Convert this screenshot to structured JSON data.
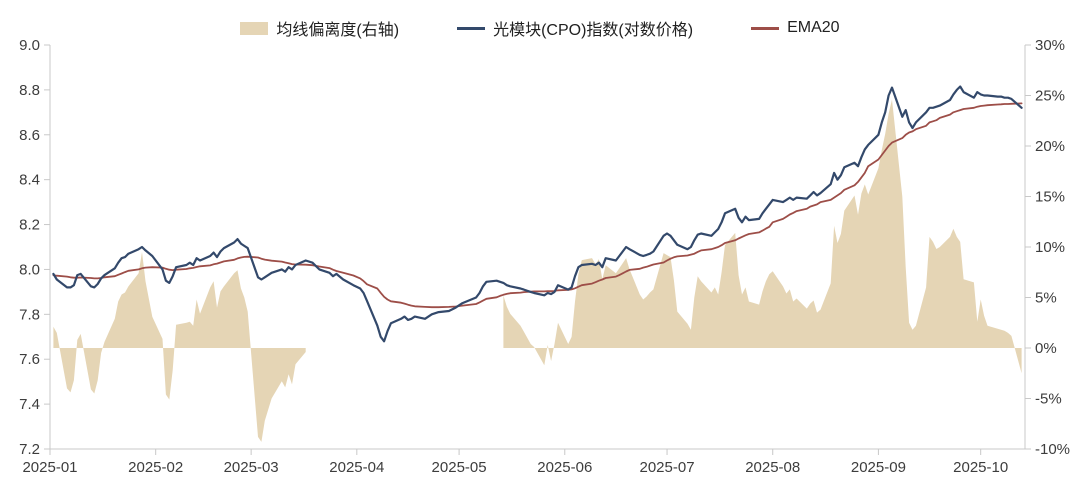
{
  "chart_data": {
    "type": "area+line",
    "title": "",
    "legend_position": "top-center",
    "grid": false,
    "colors": {
      "deviation_area": "#e5d5b5",
      "index_line": "#33496b",
      "ema_line": "#9d4e48",
      "axis_line": "#c8c8c8",
      "tick_label": "#3d3d3d",
      "background": "#ffffff"
    },
    "axes": {
      "left": {
        "min": 7.2,
        "max": 9.0,
        "ticks": [
          "9.0",
          "8.8",
          "8.6",
          "8.4",
          "8.2",
          "8.0",
          "7.8",
          "7.6",
          "7.4",
          "7.2"
        ]
      },
      "right": {
        "min": -10,
        "max": 30,
        "ticks": [
          "30%",
          "25%",
          "20%",
          "15%",
          "10%",
          "5%",
          "0%",
          "-5%",
          "-10%"
        ]
      },
      "x": {
        "domain": [
          "2025-01-01",
          "2025-10-14"
        ],
        "ticks": [
          {
            "label": "2025-01",
            "date": "2025-01-01"
          },
          {
            "label": "2025-02",
            "date": "2025-02-01"
          },
          {
            "label": "2025-03",
            "date": "2025-03-01"
          },
          {
            "label": "2025-04",
            "date": "2025-04-01"
          },
          {
            "label": "2025-05",
            "date": "2025-05-01"
          },
          {
            "label": "2025-06",
            "date": "2025-06-01"
          },
          {
            "label": "2025-07",
            "date": "2025-07-01"
          },
          {
            "label": "2025-08",
            "date": "2025-08-01"
          },
          {
            "label": "2025-09",
            "date": "2025-09-01"
          },
          {
            "label": "2025-10",
            "date": "2025-10-01"
          }
        ]
      }
    },
    "series": [
      {
        "name": "均线偏离度(右轴)",
        "type": "area",
        "axis": "right",
        "color": "#e5d5b5"
      },
      {
        "name": "光模块(CPO)指数(对数价格)",
        "type": "line",
        "axis": "left",
        "color": "#33496b",
        "width": 2.2
      },
      {
        "name": "EMA20",
        "type": "line",
        "axis": "left",
        "color": "#9d4e48",
        "width": 1.8
      }
    ],
    "points_format": [
      "date",
      "index_log_price",
      "ema20",
      "deviation_pct"
    ],
    "points": [
      [
        "2025-01-02",
        7.98,
        7.975,
        2.1
      ],
      [
        "2025-01-03",
        7.955,
        7.972,
        1.5
      ],
      [
        "2025-01-06",
        7.92,
        7.968,
        -4.0
      ],
      [
        "2025-01-07",
        7.92,
        7.965,
        -4.4
      ],
      [
        "2025-01-08",
        7.93,
        7.963,
        -3.2
      ],
      [
        "2025-01-09",
        7.975,
        7.963,
        0.8
      ],
      [
        "2025-01-10",
        7.98,
        7.964,
        1.4
      ],
      [
        "2025-01-13",
        7.925,
        7.962,
        -4.1
      ],
      [
        "2025-01-14",
        7.92,
        7.96,
        -4.5
      ],
      [
        "2025-01-15",
        7.935,
        7.96,
        -3.2
      ],
      [
        "2025-01-16",
        7.96,
        7.962,
        -0.5
      ],
      [
        "2025-01-17",
        7.975,
        7.965,
        0.6
      ],
      [
        "2025-01-20",
        8.005,
        7.97,
        2.9
      ],
      [
        "2025-01-21",
        8.03,
        7.976,
        4.6
      ],
      [
        "2025-01-22",
        8.05,
        7.982,
        5.3
      ],
      [
        "2025-01-23",
        8.055,
        7.988,
        5.5
      ],
      [
        "2025-01-24",
        8.07,
        7.994,
        6.1
      ],
      [
        "2025-01-27",
        8.09,
        8.0,
        7.4
      ],
      [
        "2025-01-28",
        8.1,
        8.005,
        9.5
      ],
      [
        "2025-01-29",
        8.085,
        8.008,
        6.6
      ],
      [
        "2025-01-31",
        8.06,
        8.01,
        3.1
      ],
      [
        "2025-02-03",
        8.0,
        8.008,
        0.9
      ],
      [
        "2025-02-04",
        7.95,
        8.003,
        -4.6
      ],
      [
        "2025-02-05",
        7.94,
        7.999,
        -5.1
      ],
      [
        "2025-02-06",
        7.97,
        7.997,
        -2.2
      ],
      [
        "2025-02-07",
        8.01,
        7.999,
        2.3
      ],
      [
        "2025-02-10",
        8.02,
        8.002,
        2.5
      ],
      [
        "2025-02-11",
        8.03,
        8.005,
        2.6
      ],
      [
        "2025-02-12",
        8.02,
        8.007,
        2.2
      ],
      [
        "2025-02-13",
        8.05,
        8.011,
        4.8
      ],
      [
        "2025-02-14",
        8.04,
        8.014,
        3.4
      ],
      [
        "2025-02-17",
        8.06,
        8.018,
        6.0
      ],
      [
        "2025-02-18",
        8.075,
        8.023,
        6.6
      ],
      [
        "2025-02-19",
        8.055,
        8.026,
        4.0
      ],
      [
        "2025-02-20",
        8.08,
        8.031,
        5.6
      ],
      [
        "2025-02-21",
        8.095,
        8.036,
        6.1
      ],
      [
        "2025-02-24",
        8.12,
        8.043,
        7.4
      ],
      [
        "2025-02-25",
        8.135,
        8.049,
        7.7
      ],
      [
        "2025-02-26",
        8.115,
        8.053,
        5.9
      ],
      [
        "2025-02-27",
        8.105,
        8.056,
        5.0
      ],
      [
        "2025-02-28",
        8.095,
        8.057,
        3.6
      ],
      [
        "2025-03-03",
        7.965,
        8.053,
        -8.8
      ],
      [
        "2025-03-04",
        7.955,
        8.048,
        -9.3
      ],
      [
        "2025-03-05",
        7.965,
        8.044,
        -7.2
      ],
      [
        "2025-03-07",
        7.985,
        8.039,
        -5.0
      ],
      [
        "2025-03-10",
        8.0,
        8.035,
        -3.3
      ],
      [
        "2025-03-11",
        7.99,
        8.031,
        -3.9
      ],
      [
        "2025-03-12",
        8.01,
        8.028,
        -2.6
      ],
      [
        "2025-03-13",
        8.0,
        8.024,
        -3.6
      ],
      [
        "2025-03-14",
        8.02,
        8.022,
        -1.6
      ],
      [
        "2025-03-17",
        8.04,
        8.021,
        -0.4
      ],
      [
        "2025-03-19",
        8.03,
        8.019,
        null
      ],
      [
        "2025-03-21",
        8.0,
        8.013,
        null
      ],
      [
        "2025-03-24",
        7.985,
        8.006,
        null
      ],
      [
        "2025-03-25",
        7.97,
        7.999,
        null
      ],
      [
        "2025-03-26",
        7.98,
        7.993,
        null
      ],
      [
        "2025-03-28",
        7.955,
        7.985,
        null
      ],
      [
        "2025-03-31",
        7.93,
        7.973,
        null
      ],
      [
        "2025-04-02",
        7.915,
        7.96,
        null
      ],
      [
        "2025-04-03",
        7.895,
        7.948,
        null
      ],
      [
        "2025-04-04",
        7.86,
        7.934,
        null
      ],
      [
        "2025-04-07",
        7.75,
        7.915,
        null
      ],
      [
        "2025-04-08",
        7.7,
        7.896,
        null
      ],
      [
        "2025-04-09",
        7.68,
        7.878,
        null
      ],
      [
        "2025-04-10",
        7.725,
        7.866,
        null
      ],
      [
        "2025-04-11",
        7.76,
        7.858,
        null
      ],
      [
        "2025-04-14",
        7.78,
        7.852,
        null
      ],
      [
        "2025-04-15",
        7.79,
        7.848,
        null
      ],
      [
        "2025-04-16",
        7.775,
        7.843,
        null
      ],
      [
        "2025-04-17",
        7.78,
        7.839,
        null
      ],
      [
        "2025-04-18",
        7.79,
        7.836,
        null
      ],
      [
        "2025-04-21",
        7.78,
        7.833,
        null
      ],
      [
        "2025-04-23",
        7.8,
        7.832,
        null
      ],
      [
        "2025-04-25",
        7.81,
        7.832,
        null
      ],
      [
        "2025-04-28",
        7.815,
        7.833,
        null
      ],
      [
        "2025-04-30",
        7.83,
        7.835,
        null
      ],
      [
        "2025-05-02",
        7.85,
        7.839,
        null
      ],
      [
        "2025-05-06",
        7.875,
        7.846,
        null
      ],
      [
        "2025-05-07",
        7.895,
        7.853,
        null
      ],
      [
        "2025-05-08",
        7.925,
        7.861,
        null
      ],
      [
        "2025-05-09",
        7.945,
        7.869,
        null
      ],
      [
        "2025-05-12",
        7.95,
        7.876,
        null
      ],
      [
        "2025-05-13",
        7.945,
        7.882,
        null
      ],
      [
        "2025-05-14",
        7.94,
        7.887,
        5.2
      ],
      [
        "2025-05-15",
        7.93,
        7.891,
        4.1
      ],
      [
        "2025-05-16",
        7.925,
        7.894,
        3.4
      ],
      [
        "2025-05-19",
        7.915,
        7.897,
        2.2
      ],
      [
        "2025-05-20",
        7.91,
        7.899,
        1.6
      ],
      [
        "2025-05-21",
        7.905,
        7.9,
        1.0
      ],
      [
        "2025-05-22",
        7.9,
        7.901,
        0.4
      ],
      [
        "2025-05-23",
        7.895,
        7.902,
        0.1
      ],
      [
        "2025-05-26",
        7.885,
        7.902,
        -1.7
      ],
      [
        "2025-05-27",
        7.895,
        7.903,
        0.3
      ],
      [
        "2025-05-28",
        7.89,
        7.903,
        -1.3
      ],
      [
        "2025-05-29",
        7.9,
        7.904,
        0.4
      ],
      [
        "2025-05-30",
        7.93,
        7.907,
        2.5
      ],
      [
        "2025-06-02",
        7.91,
        7.909,
        0.4
      ],
      [
        "2025-06-03",
        7.92,
        7.911,
        1.1
      ],
      [
        "2025-06-04",
        7.97,
        7.916,
        4.6
      ],
      [
        "2025-06-05",
        8.01,
        7.923,
        7.3
      ],
      [
        "2025-06-06",
        8.02,
        7.93,
        8.7
      ],
      [
        "2025-06-09",
        8.025,
        7.937,
        8.9
      ],
      [
        "2025-06-10",
        8.02,
        7.943,
        8.3
      ],
      [
        "2025-06-11",
        8.03,
        7.95,
        8.8
      ],
      [
        "2025-06-12",
        8.01,
        7.955,
        6.8
      ],
      [
        "2025-06-13",
        8.05,
        7.962,
        8.2
      ],
      [
        "2025-06-16",
        8.04,
        7.968,
        7.4
      ],
      [
        "2025-06-17",
        8.06,
        7.975,
        7.9
      ],
      [
        "2025-06-18",
        8.08,
        7.983,
        8.4
      ],
      [
        "2025-06-19",
        8.1,
        7.991,
        8.9
      ],
      [
        "2025-06-20",
        8.09,
        7.998,
        7.8
      ],
      [
        "2025-06-23",
        8.065,
        8.003,
        5.3
      ],
      [
        "2025-06-24",
        8.06,
        8.008,
        4.8
      ],
      [
        "2025-06-25",
        8.065,
        8.012,
        5.1
      ],
      [
        "2025-06-26",
        8.07,
        8.017,
        5.5
      ],
      [
        "2025-06-27",
        8.08,
        8.022,
        5.8
      ],
      [
        "2025-06-30",
        8.15,
        8.031,
        9.4
      ],
      [
        "2025-07-01",
        8.16,
        8.04,
        9.2
      ],
      [
        "2025-07-02",
        8.15,
        8.048,
        9.0
      ],
      [
        "2025-07-03",
        8.13,
        8.054,
        6.7
      ],
      [
        "2025-07-04",
        8.11,
        8.058,
        3.6
      ],
      [
        "2025-07-07",
        8.09,
        8.062,
        2.4
      ],
      [
        "2025-07-08",
        8.1,
        8.066,
        1.8
      ],
      [
        "2025-07-09",
        8.13,
        8.07,
        5.0
      ],
      [
        "2025-07-10",
        8.155,
        8.078,
        7.1
      ],
      [
        "2025-07-11",
        8.16,
        8.085,
        6.6
      ],
      [
        "2025-07-14",
        8.15,
        8.09,
        5.5
      ],
      [
        "2025-07-15",
        8.165,
        8.095,
        6.0
      ],
      [
        "2025-07-16",
        8.18,
        8.1,
        5.3
      ],
      [
        "2025-07-17",
        8.21,
        8.108,
        7.5
      ],
      [
        "2025-07-18",
        8.25,
        8.118,
        10.2
      ],
      [
        "2025-07-21",
        8.27,
        8.13,
        11.4
      ],
      [
        "2025-07-22",
        8.23,
        8.138,
        7.2
      ],
      [
        "2025-07-23",
        8.21,
        8.145,
        5.3
      ],
      [
        "2025-07-24",
        8.235,
        8.152,
        6.0
      ],
      [
        "2025-07-25",
        8.22,
        8.158,
        4.6
      ],
      [
        "2025-07-28",
        8.225,
        8.165,
        4.3
      ],
      [
        "2025-07-29",
        8.25,
        8.173,
        5.6
      ],
      [
        "2025-07-30",
        8.27,
        8.182,
        6.6
      ],
      [
        "2025-07-31",
        8.29,
        8.19,
        7.3
      ],
      [
        "2025-08-01",
        8.31,
        8.21,
        7.6
      ],
      [
        "2025-08-04",
        8.3,
        8.225,
        6.1
      ],
      [
        "2025-08-05",
        8.31,
        8.235,
        5.4
      ],
      [
        "2025-08-06",
        8.32,
        8.245,
        5.8
      ],
      [
        "2025-08-07",
        8.31,
        8.252,
        4.6
      ],
      [
        "2025-08-08",
        8.32,
        8.26,
        4.9
      ],
      [
        "2025-08-11",
        8.315,
        8.27,
        3.9
      ],
      [
        "2025-08-12",
        8.33,
        8.28,
        4.4
      ],
      [
        "2025-08-13",
        8.345,
        8.285,
        4.7
      ],
      [
        "2025-08-14",
        8.33,
        8.29,
        3.5
      ],
      [
        "2025-08-15",
        8.34,
        8.3,
        3.8
      ],
      [
        "2025-08-18",
        8.38,
        8.31,
        6.4
      ],
      [
        "2025-08-19",
        8.43,
        8.32,
        12.1
      ],
      [
        "2025-08-20",
        8.4,
        8.33,
        10.4
      ],
      [
        "2025-08-21",
        8.42,
        8.34,
        11.3
      ],
      [
        "2025-08-22",
        8.455,
        8.355,
        13.6
      ],
      [
        "2025-08-25",
        8.475,
        8.375,
        15.1
      ],
      [
        "2025-08-26",
        8.46,
        8.39,
        13.2
      ],
      [
        "2025-08-27",
        8.5,
        8.41,
        15.3
      ],
      [
        "2025-08-28",
        8.535,
        8.43,
        16.2
      ],
      [
        "2025-08-29",
        8.555,
        8.46,
        15.2
      ],
      [
        "2025-09-01",
        8.6,
        8.49,
        17.8
      ],
      [
        "2025-09-02",
        8.655,
        8.51,
        19.6
      ],
      [
        "2025-09-03",
        8.7,
        8.53,
        21.2
      ],
      [
        "2025-09-04",
        8.775,
        8.55,
        23.2
      ],
      [
        "2025-09-05",
        8.81,
        8.565,
        24.6
      ],
      [
        "2025-09-08",
        8.68,
        8.585,
        15.0
      ],
      [
        "2025-09-09",
        8.71,
        8.6,
        8.0
      ],
      [
        "2025-09-10",
        8.655,
        8.61,
        2.5
      ],
      [
        "2025-09-11",
        8.63,
        8.615,
        1.8
      ],
      [
        "2025-09-12",
        8.655,
        8.625,
        2.2
      ],
      [
        "2025-09-15",
        8.7,
        8.64,
        6.0
      ],
      [
        "2025-09-16",
        8.72,
        8.655,
        11.0
      ],
      [
        "2025-09-17",
        8.72,
        8.66,
        10.5
      ],
      [
        "2025-09-18",
        8.725,
        8.665,
        9.8
      ],
      [
        "2025-09-19",
        8.73,
        8.675,
        10.0
      ],
      [
        "2025-09-22",
        8.755,
        8.69,
        11.0
      ],
      [
        "2025-09-23",
        8.78,
        8.7,
        11.8
      ],
      [
        "2025-09-24",
        8.8,
        8.705,
        11.0
      ],
      [
        "2025-09-25",
        8.815,
        8.71,
        10.5
      ],
      [
        "2025-09-26",
        8.79,
        8.715,
        6.8
      ],
      [
        "2025-09-29",
        8.765,
        8.72,
        6.5
      ],
      [
        "2025-09-30",
        8.79,
        8.725,
        2.6
      ],
      [
        "2025-10-01",
        8.78,
        8.728,
        4.8
      ],
      [
        "2025-10-02",
        8.775,
        8.73,
        3.2
      ],
      [
        "2025-10-03",
        8.775,
        8.732,
        2.2
      ],
      [
        "2025-10-06",
        8.77,
        8.735,
        1.9
      ],
      [
        "2025-10-07",
        8.77,
        8.736,
        1.8
      ],
      [
        "2025-10-08",
        8.765,
        8.737,
        1.7
      ],
      [
        "2025-10-09",
        8.765,
        8.737,
        1.5
      ],
      [
        "2025-10-10",
        8.76,
        8.738,
        1.2
      ],
      [
        "2025-10-13",
        8.72,
        8.74,
        -2.5
      ]
    ]
  }
}
